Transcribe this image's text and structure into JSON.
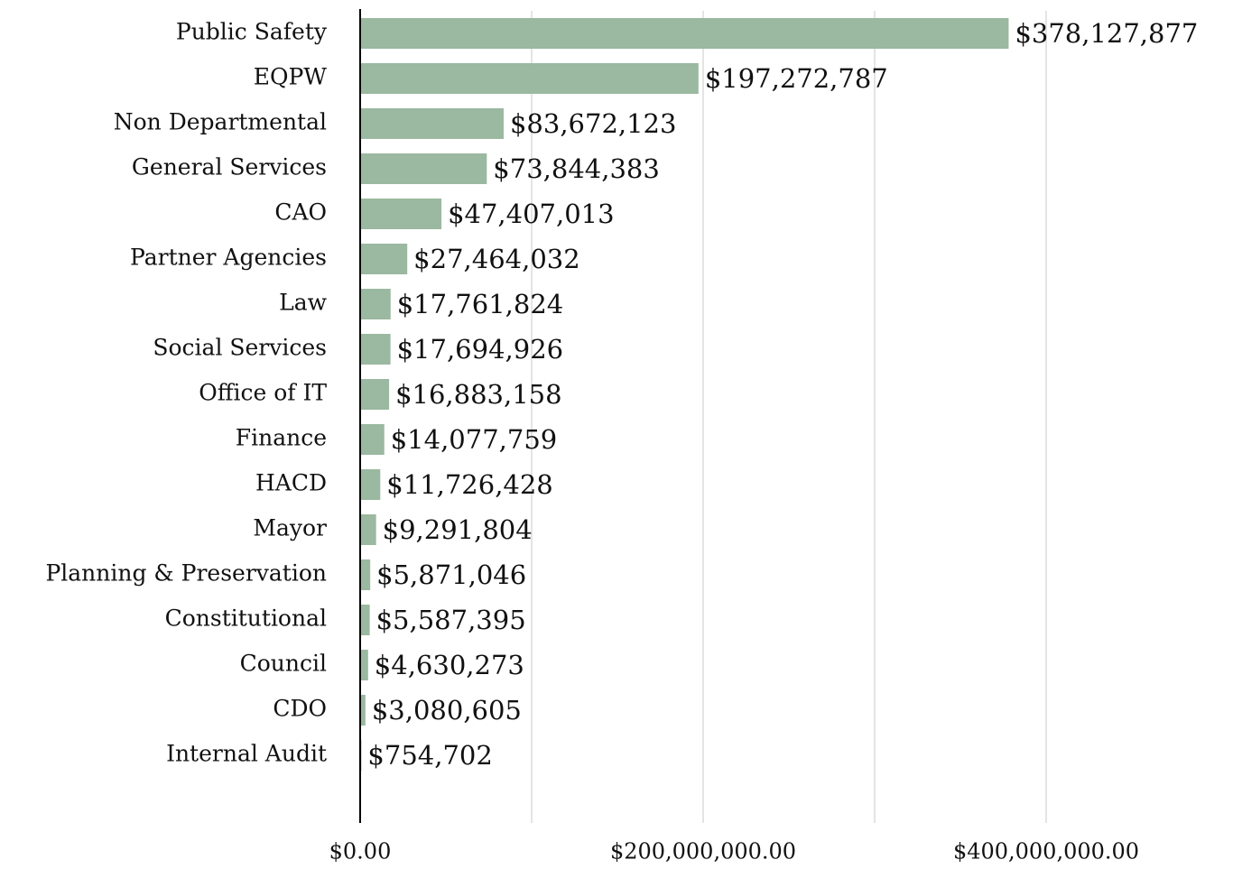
{
  "chart_data": {
    "type": "bar",
    "orientation": "horizontal",
    "categories": [
      "Public Safety",
      "EQPW",
      "Non Departmental",
      "General Services",
      "CAO",
      "Partner Agencies",
      "Law",
      "Social Services",
      "Office of IT",
      "Finance",
      "HACD",
      "Mayor",
      "Planning & Preservation",
      "Constitutional",
      "Council",
      "CDO",
      "Internal Audit"
    ],
    "values": [
      378127877,
      197272787,
      83672123,
      73844383,
      47407013,
      27464032,
      17761824,
      17694926,
      16883158,
      14077759,
      11726428,
      9291804,
      5871046,
      5587395,
      4630273,
      3080605,
      754702
    ],
    "value_labels": [
      "$378,127,877",
      "$197,272,787",
      "$83,672,123",
      "$73,844,383",
      "$47,407,013",
      "$27,464,032",
      "$17,761,824",
      "$17,694,926",
      "$16,883,158",
      "$14,077,759",
      "$11,726,428",
      "$9,291,804",
      "$5,871,046",
      "$5,587,395",
      "$4,630,273",
      "$3,080,605",
      "$754,702"
    ],
    "color": "#9bb8a0",
    "xlim": [
      0,
      500000000
    ],
    "xticks": [
      {
        "value": 0,
        "label": "$0.00"
      },
      {
        "value": 200000000,
        "label": "$200,000,000.00"
      },
      {
        "value": 400000000,
        "label": "$400,000,000.00"
      }
    ],
    "minor_xticks": [
      100000000,
      300000000
    ],
    "grid": true
  }
}
